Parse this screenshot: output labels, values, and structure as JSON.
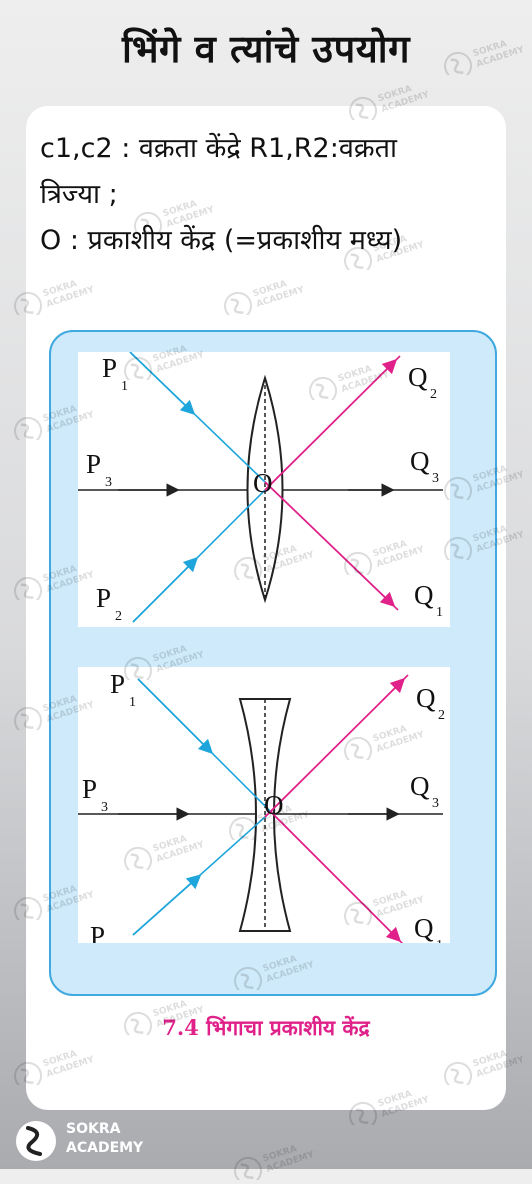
{
  "title": "भिंगे व त्यांचे उपयोग",
  "text": {
    "line1": "c1,c2 : वक्रता केंद्रे R1,R2:वक्रता",
    "line2": "त्रिज्या ;",
    "line3": "O : प्रकाशीय केंद्र (=प्रकाशीय मध्य)"
  },
  "figure": {
    "caption": "7.4 भिंगाचा प्रकाशीय केंद्र",
    "labels": {
      "p": "P",
      "q": "Q",
      "o": "O",
      "s1": "1",
      "s2": "2",
      "s3": "3"
    },
    "colors": {
      "blue_ray": "#1ea6dc",
      "pink_ray": "#e0218a",
      "frame": "#3fa9e0",
      "frame_fill": "#cfeafa"
    }
  },
  "watermark": {
    "line1": "SOKRA",
    "line2": "ACADEMY"
  },
  "logo": {
    "line1": "SOKRA",
    "line2": "ACADEMY"
  }
}
